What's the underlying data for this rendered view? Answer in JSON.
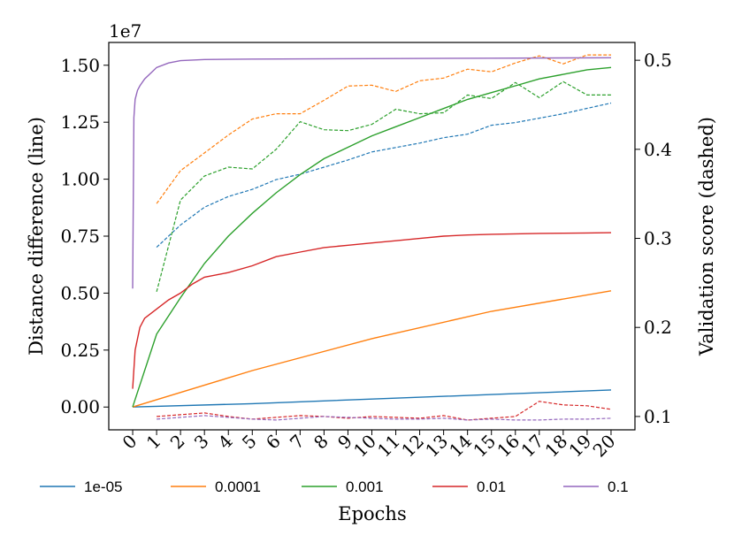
{
  "chart_data": {
    "type": "line",
    "xlabel": "Epochs",
    "ylabel_left": "Distance difference (line)",
    "ylabel_right": "Validation score (dashed)",
    "left_axis_multiplier": "1e7",
    "xlim": [
      -1,
      21
    ],
    "ylim_left": [
      -0.1,
      1.6
    ],
    "ylim_right": [
      0.085,
      0.52
    ],
    "x_ticks": [
      0,
      1,
      2,
      3,
      4,
      5,
      6,
      7,
      8,
      9,
      10,
      11,
      12,
      13,
      14,
      15,
      16,
      17,
      18,
      19,
      20
    ],
    "x_tick_labels": [
      "0",
      "1",
      "2",
      "3",
      "4",
      "5",
      "6",
      "7",
      "8",
      "9",
      "10",
      "11",
      "12",
      "13",
      "14",
      "15",
      "16",
      "17",
      "18",
      "19",
      "20"
    ],
    "y_left_ticks": [
      0.0,
      0.25,
      0.5,
      0.75,
      1.0,
      1.25,
      1.5
    ],
    "y_left_tick_labels": [
      "0.00",
      "0.25",
      "0.50",
      "0.75",
      "1.00",
      "1.25",
      "1.50"
    ],
    "y_right_ticks": [
      0.1,
      0.2,
      0.3,
      0.4,
      0.5
    ],
    "y_right_tick_labels": [
      "0.1",
      "0.2",
      "0.3",
      "0.4",
      "0.5"
    ],
    "legend_position": "bottom",
    "series": [
      {
        "name": "1e-05",
        "color": "#1f77b4",
        "distance": {
          "x": [
            0,
            5,
            10,
            15,
            20
          ],
          "y": [
            0.0,
            0.015,
            0.035,
            0.055,
            0.075
          ]
        },
        "validation": {
          "x": [
            1,
            2,
            3,
            4,
            5,
            6,
            7,
            8,
            9,
            10,
            11,
            12,
            13,
            14,
            15,
            16,
            17,
            18,
            19,
            20
          ],
          "y": [
            0.29,
            0.315,
            0.335,
            0.347,
            0.355,
            0.366,
            0.372,
            0.38,
            0.388,
            0.397,
            0.402,
            0.407,
            0.413,
            0.417,
            0.427,
            0.43,
            0.435,
            0.44,
            0.446,
            0.452
          ]
        }
      },
      {
        "name": "0.0001",
        "color": "#ff7f0e",
        "distance": {
          "x": [
            0,
            5,
            10,
            15,
            20
          ],
          "y": [
            0.0,
            0.16,
            0.3,
            0.42,
            0.51
          ]
        },
        "validation": {
          "x": [
            1,
            2,
            3,
            4,
            5,
            6,
            7,
            8,
            9,
            10,
            11,
            12,
            13,
            14,
            15,
            16,
            17,
            18,
            19,
            20
          ],
          "y": [
            0.339,
            0.376,
            0.396,
            0.416,
            0.434,
            0.44,
            0.44,
            0.455,
            0.471,
            0.472,
            0.465,
            0.477,
            0.48,
            0.49,
            0.487,
            0.497,
            0.505,
            0.496,
            0.506,
            0.506
          ]
        }
      },
      {
        "name": "0.001",
        "color": "#2ca02c",
        "distance": {
          "x": [
            0,
            1,
            2,
            3,
            4,
            5,
            6,
            7,
            8,
            9,
            10,
            11,
            12,
            13,
            14,
            15,
            16,
            17,
            18,
            19,
            20
          ],
          "y": [
            0.0,
            0.32,
            0.48,
            0.63,
            0.75,
            0.85,
            0.94,
            1.02,
            1.09,
            1.14,
            1.19,
            1.23,
            1.27,
            1.31,
            1.35,
            1.38,
            1.41,
            1.44,
            1.46,
            1.48,
            1.49
          ]
        },
        "validation": {
          "x": [
            1,
            2,
            3,
            4,
            5,
            6,
            7,
            8,
            9,
            10,
            11,
            12,
            13,
            14,
            15,
            16,
            17,
            18,
            19,
            20
          ],
          "y": [
            0.24,
            0.343,
            0.37,
            0.38,
            0.378,
            0.4,
            0.431,
            0.422,
            0.421,
            0.428,
            0.445,
            0.44,
            0.441,
            0.461,
            0.457,
            0.475,
            0.458,
            0.476,
            0.461,
            0.461
          ]
        }
      },
      {
        "name": "0.01",
        "color": "#d62728",
        "distance": {
          "x": [
            0,
            0.1,
            0.3,
            0.5,
            1,
            1.5,
            2,
            2.5,
            3,
            4,
            5,
            6,
            7,
            8,
            9,
            10,
            11,
            12,
            13,
            14,
            15,
            16,
            17,
            18,
            19,
            20
          ],
          "y": [
            0.08,
            0.25,
            0.35,
            0.39,
            0.43,
            0.47,
            0.5,
            0.54,
            0.57,
            0.59,
            0.62,
            0.66,
            0.68,
            0.7,
            0.71,
            0.72,
            0.73,
            0.74,
            0.75,
            0.755,
            0.758,
            0.76,
            0.762,
            0.763,
            0.764,
            0.765
          ]
        },
        "validation": {
          "x": [
            1,
            2,
            3,
            4,
            5,
            6,
            7,
            8,
            9,
            10,
            11,
            12,
            13,
            14,
            15,
            16,
            17,
            18,
            19,
            20
          ],
          "y": [
            0.1,
            0.102,
            0.104,
            0.1,
            0.097,
            0.099,
            0.101,
            0.1,
            0.098,
            0.1,
            0.099,
            0.098,
            0.101,
            0.096,
            0.098,
            0.1,
            0.117,
            0.113,
            0.112,
            0.108
          ]
        }
      },
      {
        "name": "0.1",
        "color": "#9467bd",
        "distance": {
          "x": [
            0,
            0.05,
            0.1,
            0.2,
            0.3,
            0.5,
            0.8,
            1,
            1.5,
            2,
            3,
            5,
            10,
            15,
            20
          ],
          "y": [
            0.52,
            1.27,
            1.35,
            1.39,
            1.41,
            1.44,
            1.47,
            1.49,
            1.51,
            1.52,
            1.525,
            1.527,
            1.529,
            1.531,
            1.533
          ]
        },
        "validation": {
          "x": [
            1,
            2,
            3,
            4,
            5,
            6,
            7,
            8,
            9,
            10,
            11,
            12,
            13,
            14,
            15,
            16,
            17,
            18,
            19,
            20
          ],
          "y": [
            0.097,
            0.099,
            0.101,
            0.099,
            0.097,
            0.096,
            0.098,
            0.1,
            0.099,
            0.098,
            0.097,
            0.097,
            0.098,
            0.096,
            0.097,
            0.096,
            0.096,
            0.097,
            0.097,
            0.098
          ]
        }
      }
    ]
  }
}
